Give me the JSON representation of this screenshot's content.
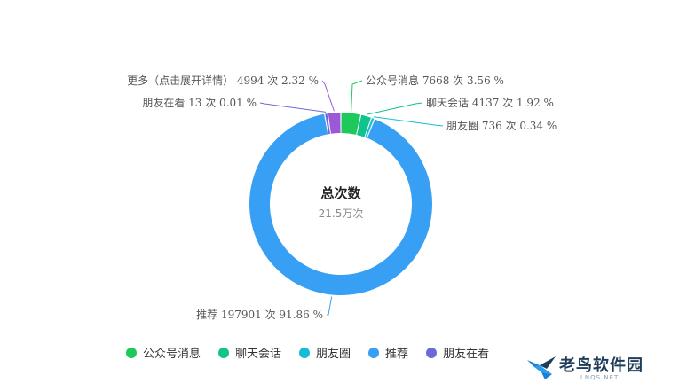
{
  "chart_data": {
    "type": "pie",
    "style": "donut",
    "center": {
      "title": "总次数",
      "value": "21.5万次"
    },
    "slices": [
      {
        "name": "公众号消息",
        "count": 7668,
        "unit": "次",
        "percent": "3.56 %",
        "share": 3.56,
        "color": "#1ec95b",
        "label": "公众号消息 7668 次 3.56 %"
      },
      {
        "name": "聊天会话",
        "count": 4137,
        "unit": "次",
        "percent": "1.92 %",
        "share": 1.92,
        "color": "#10c28c",
        "label": "聊天会话 4137 次 1.92 %"
      },
      {
        "name": "朋友圈",
        "count": 736,
        "unit": "次",
        "percent": "0.34 %",
        "share": 0.34,
        "color": "#15bcd8",
        "label": "朋友圈 736 次 0.34 %"
      },
      {
        "name": "推荐",
        "count": 197901,
        "unit": "次",
        "percent": "91.86 %",
        "share": 91.86,
        "color": "#38a0f4",
        "label": "推荐 197901 次 91.86 %"
      },
      {
        "name": "朋友在看",
        "count": 13,
        "unit": "次",
        "percent": "0.01 %",
        "share": 0.01,
        "color": "#6b6bd8",
        "label": "朋友在看 13 次 0.01 %"
      },
      {
        "name": "更多（点击展开详情）",
        "count": 4994,
        "unit": "次",
        "percent": "2.32 %",
        "share": 2.32,
        "color": "#9b58d8",
        "label": "更多（点击展开详情） 4994 次 2.32 %"
      }
    ],
    "legend": {
      "placement": "bottom-left",
      "items": [
        {
          "name": "公众号消息",
          "color": "#1ec95b"
        },
        {
          "name": "聊天会话",
          "color": "#10c28c"
        },
        {
          "name": "朋友圈",
          "color": "#15bcd8"
        },
        {
          "name": "推荐",
          "color": "#38a0f4"
        },
        {
          "name": "朋友在看",
          "color": "#6b6bd8"
        }
      ]
    }
  },
  "watermark": {
    "title": "老鸟软件园",
    "subtitle": "LNQS.NET"
  }
}
